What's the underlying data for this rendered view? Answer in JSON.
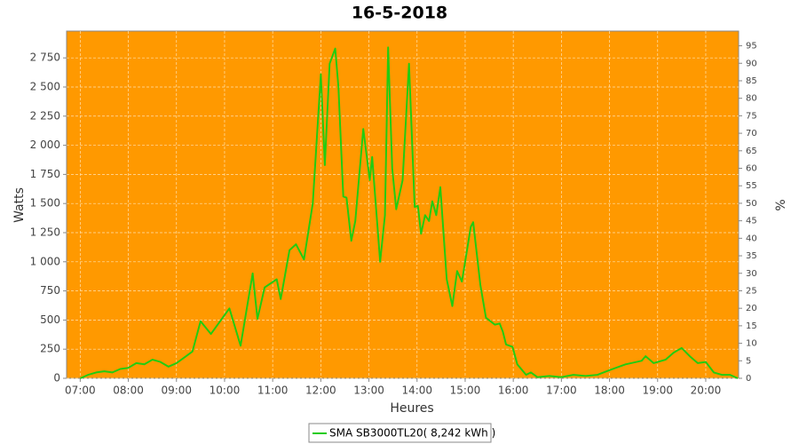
{
  "chart_data": {
    "type": "line",
    "title": "16-5-2018",
    "x_label": "Heures",
    "y_label": "Watts",
    "y2_label": "%",
    "x": [
      "07:00",
      "07:10",
      "07:20",
      "07:30",
      "07:40",
      "07:50",
      "08:00",
      "08:10",
      "08:20",
      "08:30",
      "08:40",
      "08:50",
      "09:00",
      "09:10",
      "09:20",
      "09:30",
      "09:43",
      "10:06",
      "10:20",
      "10:35",
      "10:41",
      "10:50",
      "11:05",
      "11:10",
      "11:21",
      "11:29",
      "11:39",
      "11:50",
      "12:00",
      "12:05",
      "12:11",
      "12:18",
      "12:22",
      "12:28",
      "12:32",
      "12:38",
      "12:43",
      "12:53",
      "13:01",
      "13:04",
      "13:14",
      "13:20",
      "13:24",
      "13:29",
      "13:34",
      "13:42",
      "13:50",
      "13:57",
      "14:01",
      "14:05",
      "14:10",
      "14:15",
      "14:19",
      "14:24",
      "14:29",
      "14:37",
      "14:44",
      "14:50",
      "14:56",
      "15:07",
      "15:10",
      "15:19",
      "15:26",
      "15:37",
      "15:43",
      "15:47",
      "15:51",
      "15:59",
      "16:05",
      "16:16",
      "16:22",
      "16:30",
      "16:45",
      "17:00",
      "17:15",
      "17:30",
      "17:45",
      "18:00",
      "18:20",
      "18:40",
      "18:45",
      "18:55",
      "19:10",
      "19:20",
      "19:30",
      "19:40",
      "19:50",
      "20:00",
      "20:10",
      "20:20",
      "20:30",
      "20:40"
    ],
    "series": [
      {
        "name": "SMA SB3000TL20( 8,242 kWh )",
        "color": "#22cc11",
        "values": [
          0,
          30,
          50,
          60,
          50,
          80,
          90,
          130,
          120,
          160,
          140,
          100,
          130,
          180,
          230,
          490,
          380,
          600,
          280,
          900,
          510,
          780,
          850,
          680,
          1100,
          1150,
          1020,
          1500,
          2610,
          1830,
          2700,
          2830,
          2500,
          1560,
          1550,
          1180,
          1350,
          2140,
          1700,
          1900,
          1000,
          1400,
          2840,
          1800,
          1450,
          1700,
          2700,
          1470,
          1480,
          1240,
          1400,
          1350,
          1520,
          1400,
          1640,
          850,
          620,
          920,
          830,
          1300,
          1340,
          800,
          520,
          460,
          470,
          400,
          290,
          270,
          120,
          30,
          50,
          10,
          20,
          10,
          30,
          20,
          30,
          70,
          120,
          150,
          190,
          130,
          160,
          220,
          260,
          190,
          130,
          140,
          50,
          30,
          30,
          0
        ]
      }
    ],
    "xlim": [
      "06:43",
      "20:41"
    ],
    "xticks": [
      "07:00",
      "08:00",
      "09:00",
      "10:00",
      "11:00",
      "12:00",
      "13:00",
      "14:00",
      "15:00",
      "16:00",
      "17:00",
      "18:00",
      "19:00",
      "20:00"
    ],
    "ylim": [
      0,
      2980
    ],
    "yticks": [
      0,
      250,
      500,
      750,
      {
        "value": 1000,
        "label": "1 000"
      },
      {
        "value": 1250,
        "label": "1 250"
      },
      {
        "value": 1500,
        "label": "1 500"
      },
      {
        "value": 1750,
        "label": "1 750"
      },
      {
        "value": 2000,
        "label": "2 000"
      },
      {
        "value": 2250,
        "label": "2 250"
      },
      {
        "value": 2500,
        "label": "2 500"
      },
      {
        "value": 2750,
        "label": "2 750"
      }
    ],
    "y2lim": [
      0,
      99.2
    ],
    "y2ticks": [
      0,
      5,
      10,
      15,
      20,
      25,
      30,
      35,
      40,
      45,
      50,
      55,
      60,
      65,
      70,
      75,
      80,
      85,
      90,
      95
    ],
    "grid": true,
    "background": "#ff9900"
  }
}
